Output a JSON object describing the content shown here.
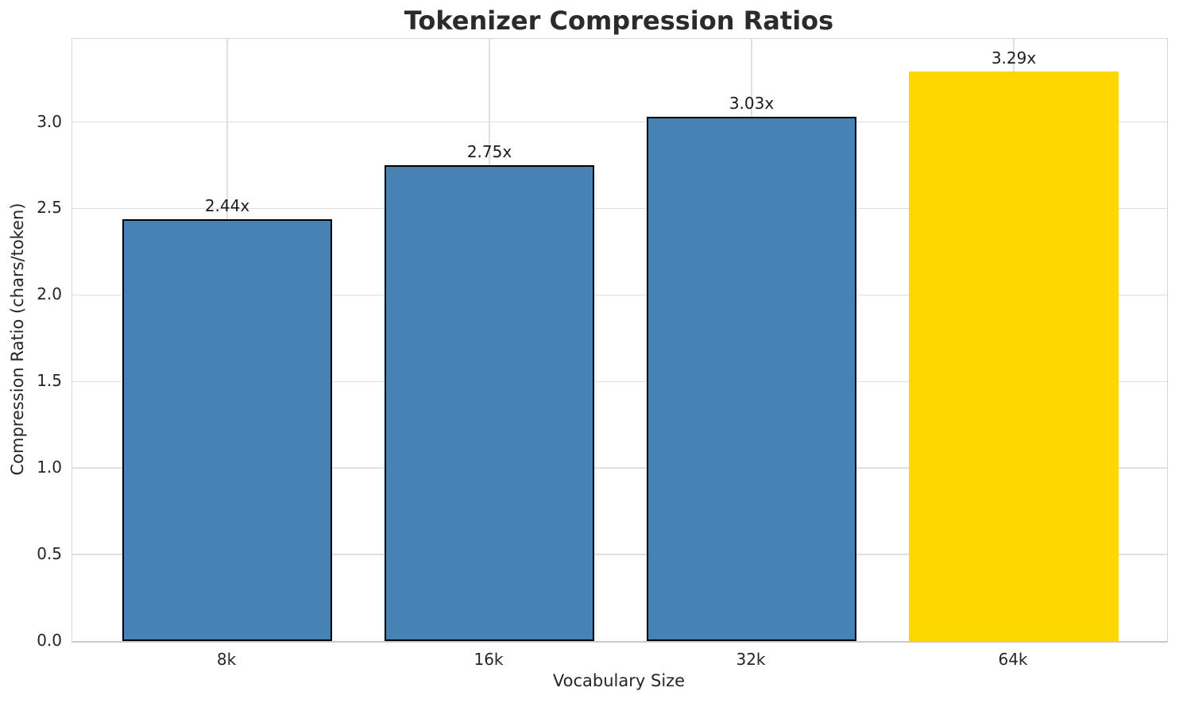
{
  "chart_data": {
    "type": "bar",
    "title": "Tokenizer Compression Ratios",
    "xlabel": "Vocabulary Size",
    "ylabel": "Compression Ratio (chars/token)",
    "categories": [
      "8k",
      "16k",
      "32k",
      "64k"
    ],
    "values": [
      2.44,
      2.75,
      3.03,
      3.29
    ],
    "value_labels": [
      "2.44x",
      "2.75x",
      "3.03x",
      "3.29x"
    ],
    "bar_colors": [
      "#4682B4",
      "#4682B4",
      "#4682B4",
      "#FFD700"
    ],
    "bar_edge_colors": [
      "#000000",
      "#000000",
      "#000000",
      "#FFD700"
    ],
    "ytick_values": [
      0.0,
      0.5,
      1.0,
      1.5,
      2.0,
      2.5,
      3.0
    ],
    "ytick_labels": [
      "0.0",
      "0.5",
      "1.0",
      "1.5",
      "2.0",
      "2.5",
      "3.0"
    ],
    "ylim": [
      0,
      3.48
    ],
    "grid": true,
    "legend_position": "none",
    "background_color": "#ffffff",
    "grid_color": "#e0e0e0"
  }
}
